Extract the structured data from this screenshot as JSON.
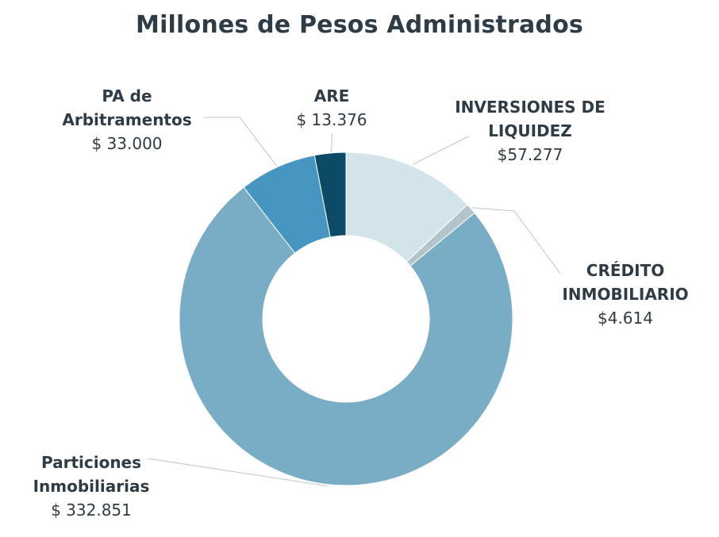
{
  "chart_data": {
    "type": "pie",
    "variant": "donut",
    "title": "Millones de Pesos Administrados",
    "slices": [
      {
        "name": "INVERSIONES DE\nLIQUIDEZ",
        "value": 57277,
        "value_label": "$57.277",
        "color": "#d3e3ea"
      },
      {
        "name": "CRÉDITO\nINMOBILIARIO",
        "value": 4614,
        "value_label": "$4.614",
        "color": "#b4c4cb"
      },
      {
        "name": "Particiones\nInmobiliarias",
        "value": 332851,
        "value_label": "$ 332.851",
        "color": "#79adc6"
      },
      {
        "name": "PA de\nArbitramentos",
        "value": 33000,
        "value_label": "$ 33.000",
        "color": "#4696c1"
      },
      {
        "name": "ARE",
        "value": 13376,
        "value_label": "$ 13.376",
        "color": "#0d4a66"
      }
    ],
    "legend": "none",
    "start_angle": "top, clockwise"
  }
}
